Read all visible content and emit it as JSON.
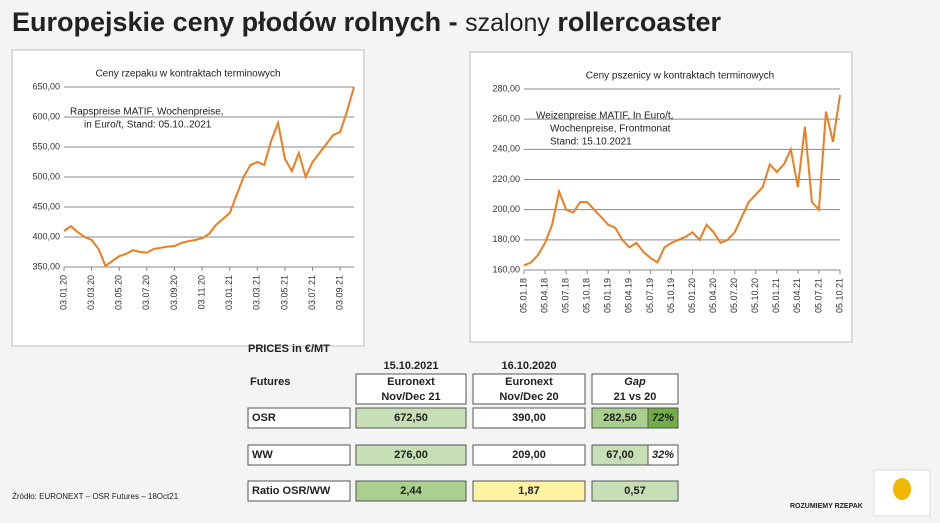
{
  "header": {
    "title_bold": "Europejskie ceny płodów rolnych -",
    "title_light": "szalony",
    "title_end": "rollercoaster"
  },
  "chart_data": [
    {
      "type": "line",
      "title": "Ceny rzepaku w kontraktach terminowych",
      "annotation": [
        "Rapspreise MATIF, Wochenpreise,",
        "in Euro/t, Stand: 05.10..2021"
      ],
      "categories": [
        "03.01.20",
        null,
        null,
        null,
        "03.03.20",
        null,
        null,
        null,
        "03.05.20",
        null,
        null,
        null,
        "03.07.20",
        null,
        null,
        null,
        "03.09.20",
        null,
        null,
        null,
        "03.11.20",
        null,
        null,
        null,
        "03.01.21",
        null,
        null,
        null,
        "03.03.21",
        null,
        null,
        null,
        "03.05.21",
        null,
        null,
        null,
        "03.07.21",
        null,
        null,
        null,
        "03.09.21",
        null,
        null
      ],
      "series": [
        {
          "name": null,
          "color": "#ed7d1f",
          "values": [
            410,
            418,
            408,
            400,
            395,
            380,
            352,
            360,
            368,
            372,
            378,
            375,
            374,
            380,
            382,
            384,
            385,
            390,
            393,
            395,
            398,
            405,
            420,
            430,
            440,
            470,
            500,
            520,
            525,
            520,
            560,
            590,
            530,
            510,
            540,
            500,
            525,
            540,
            555,
            570,
            575,
            610,
            650
          ]
        }
      ],
      "ylim": [
        350,
        650
      ],
      "yticks": [
        {
          "value": 350,
          "label": "350,00"
        },
        {
          "value": 400,
          "label": "400,00"
        },
        {
          "value": 450,
          "label": "450,00"
        },
        {
          "value": 500,
          "label": "500,00"
        },
        {
          "value": 550,
          "label": "550,00"
        },
        {
          "value": 600,
          "label": "600,00"
        },
        {
          "value": 650,
          "label": "650,00"
        }
      ],
      "grid": true
    },
    {
      "type": "line",
      "title": "Ceny pszenicy w kontraktach terminowych",
      "annotation": [
        "Weizenpreise MATIF, In Euro/t,",
        "Wochenpreise, Frontmonat",
        "Stand: 15.10.2021"
      ],
      "categories": [
        "05.01.18",
        null,
        null,
        "05.04.18",
        null,
        null,
        "05.07.18",
        null,
        null,
        "05.10.18",
        null,
        null,
        "05.01.19",
        null,
        null,
        "05.04.19",
        null,
        null,
        "05.07.19",
        null,
        null,
        "05.10.19",
        null,
        null,
        "05.01.20",
        null,
        null,
        "05.04.20",
        null,
        null,
        "05.07.20",
        null,
        null,
        "05.10.20",
        null,
        null,
        "05.01.21",
        null,
        null,
        "05.04.21",
        null,
        null,
        "05.07.21",
        null,
        null,
        "05.10.21"
      ],
      "series": [
        {
          "name": null,
          "color": "#ed7d1f",
          "values": [
            163,
            165,
            170,
            178,
            190,
            212,
            200,
            198,
            205,
            205,
            200,
            195,
            190,
            188,
            180,
            175,
            178,
            172,
            168,
            165,
            175,
            178,
            180,
            182,
            185,
            180,
            190,
            185,
            178,
            180,
            185,
            195,
            205,
            210,
            215,
            230,
            225,
            230,
            240,
            215,
            255,
            205,
            200,
            265,
            245,
            276
          ]
        }
      ],
      "ylim": [
        160,
        280
      ],
      "yticks": [
        {
          "value": 160,
          "label": "160,00"
        },
        {
          "value": 180,
          "label": "180,00"
        },
        {
          "value": 200,
          "label": "200,00"
        },
        {
          "value": 220,
          "label": "220,00"
        },
        {
          "value": 240,
          "label": "240,00"
        },
        {
          "value": 260,
          "label": "260,00"
        },
        {
          "value": 280,
          "label": "280,00"
        }
      ],
      "grid": true
    }
  ],
  "table": {
    "title": "PRICES in €/MT",
    "dates": [
      "15.10.2021",
      "16.10.2020"
    ],
    "head": {
      "label": "Futures",
      "cells": [
        [
          "Euronext",
          "Nov/Dec 21"
        ],
        [
          "Euronext",
          "Nov/Dec 20"
        ],
        [
          "Gap",
          "21 vs 20"
        ]
      ]
    },
    "rows": [
      {
        "label": "OSR",
        "cells": [
          "672,50",
          "390,00",
          "282,50",
          "72%"
        ],
        "colors": [
          "#c6dfb4",
          "#ffffff",
          "#a9d08e",
          "#70ad47"
        ]
      },
      {
        "label": "WW",
        "cells": [
          "276,00",
          "209,00",
          "67,00",
          "32%"
        ],
        "colors": [
          "#c6dfb4",
          "#ffffff",
          "#c6dfb4",
          "#ffffff"
        ]
      },
      {
        "label": "Ratio OSR/WW",
        "cells": [
          "2,44",
          "1,87",
          "0,57"
        ],
        "colors": [
          "#a9d08e",
          "#fff2a0",
          "#c6dfb4"
        ]
      }
    ]
  },
  "footer": {
    "source": "Źródło: EURONEXT – OSR Futures – 18Oct21",
    "brand": "ROZUMIEMY RZEPAK"
  }
}
